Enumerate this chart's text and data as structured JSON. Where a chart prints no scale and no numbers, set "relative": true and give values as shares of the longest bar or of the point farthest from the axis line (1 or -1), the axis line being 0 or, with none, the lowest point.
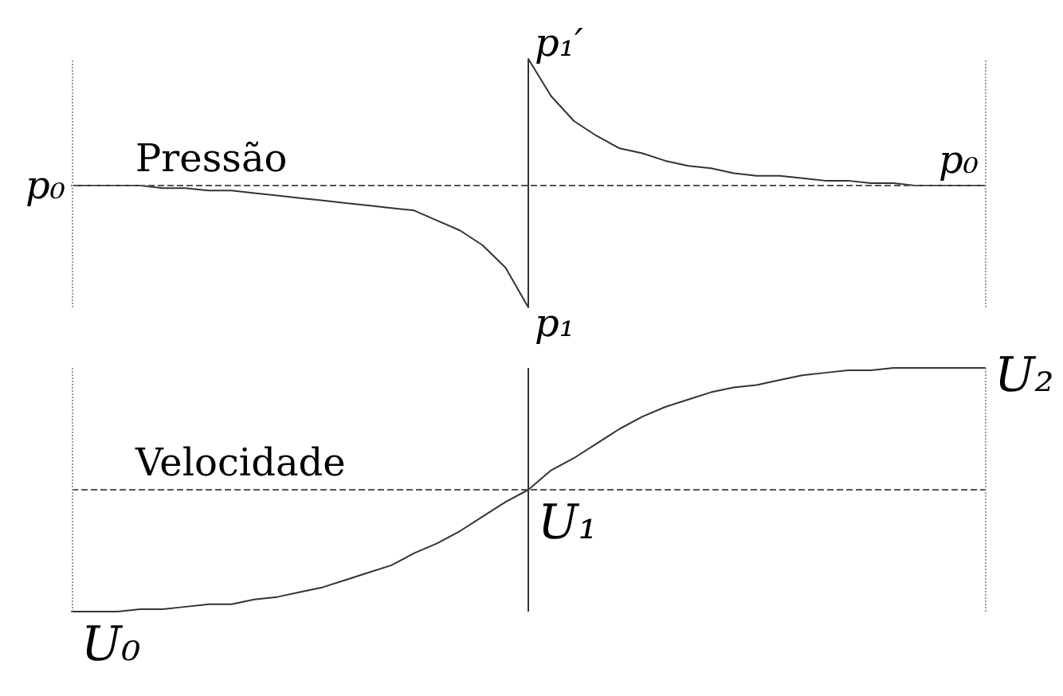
{
  "chart_data": [
    {
      "type": "line",
      "relative": true,
      "categories": [
        null,
        null,
        null,
        null,
        null,
        null,
        null,
        null,
        null,
        null,
        null,
        null,
        null,
        null,
        null,
        null,
        null,
        null,
        null,
        null,
        null,
        null,
        null,
        null,
        null,
        null,
        null,
        null,
        null,
        null,
        null,
        null,
        null,
        null,
        null,
        null,
        null,
        null,
        null,
        null,
        null
      ],
      "series": [
        {
          "name": "Pressão",
          "color": "#333333",
          "values": [
            0.49,
            0.49,
            0.49,
            0.49,
            0.48,
            0.48,
            0.47,
            0.47,
            0.46,
            0.45,
            0.44,
            0.43,
            0.42,
            0.41,
            0.4,
            0.39,
            0.35,
            0.31,
            0.25,
            0.16,
            0,
            null,
            null,
            null,
            null,
            null,
            null,
            null,
            null,
            null,
            null,
            null,
            null,
            null,
            null,
            null,
            null,
            null,
            null,
            null,
            null
          ]
        },
        {
          "color": "#333333",
          "values": [
            null,
            null,
            null,
            null,
            null,
            null,
            null,
            null,
            null,
            null,
            null,
            null,
            null,
            null,
            null,
            null,
            null,
            null,
            null,
            null,
            1,
            0.85,
            0.75,
            0.69,
            0.64,
            0.62,
            0.59,
            0.57,
            0.56,
            0.54,
            0.53,
            0.53,
            0.52,
            0.51,
            0.51,
            0.5,
            0.5,
            0.49,
            0.49,
            0.49,
            0.49
          ]
        }
      ],
      "annotations": [
        "p₀",
        "p₁′",
        "p₁",
        "p₀"
      ],
      "ref_lines": [
        {
          "axis": "y",
          "value": 0.49,
          "line_style": "dashed",
          "color": "#555555"
        }
      ]
    },
    {
      "type": "line",
      "relative": true,
      "categories": [
        null,
        null,
        null,
        null,
        null,
        null,
        null,
        null,
        null,
        null,
        null,
        null,
        null,
        null,
        null,
        null,
        null,
        null,
        null,
        null,
        null,
        null,
        null,
        null,
        null,
        null,
        null,
        null,
        null,
        null,
        null,
        null,
        null,
        null,
        null,
        null,
        null,
        null,
        null,
        null,
        null
      ],
      "series": [
        {
          "name": "Velocidade",
          "color": "#333333",
          "values": [
            0,
            0,
            0,
            0.01,
            0.01,
            0.02,
            0.03,
            0.03,
            0.05,
            0.06,
            0.08,
            0.1,
            0.13,
            0.16,
            0.19,
            0.24,
            0.28,
            0.33,
            0.39,
            0.45,
            0.5,
            0.58,
            0.63,
            0.69,
            0.75,
            0.8,
            0.84,
            0.87,
            0.9,
            0.92,
            0.93,
            0.95,
            0.97,
            0.98,
            0.99,
            0.99,
            1,
            1,
            1,
            1,
            1
          ]
        }
      ],
      "annotations": [
        "U₀",
        "U₁",
        "U₂"
      ],
      "ref_lines": [
        {
          "axis": "y",
          "value": 0.5,
          "line_style": "dashed",
          "color": "#555555"
        }
      ]
    }
  ]
}
